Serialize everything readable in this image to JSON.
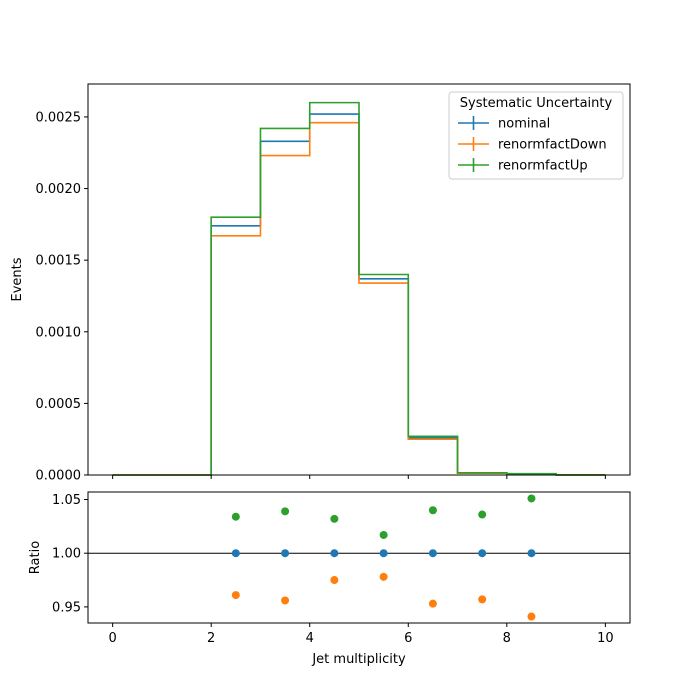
{
  "colors": {
    "nominal": "#1f77b4",
    "renormfactDown": "#ff7f0e",
    "renormfactUp": "#2ca02c",
    "reference_line": "#000000",
    "axis": "#000000",
    "background": "#ffffff"
  },
  "chart_data": [
    {
      "type": "step-histogram",
      "title": "",
      "xlabel": "",
      "ylabel": "Events",
      "xlim": [
        -0.5,
        10.5
      ],
      "ylim": [
        0,
        0.00273
      ],
      "grid": false,
      "x_ticks": [
        0,
        2,
        4,
        6,
        8,
        10
      ],
      "x_tick_labels_visible": false,
      "y_ticks": [
        0,
        0.0005,
        0.001,
        0.0015,
        0.002,
        0.0025
      ],
      "y_tick_labels": [
        "0.0000",
        "0.0005",
        "0.0010",
        "0.0015",
        "0.0020",
        "0.0025"
      ],
      "bin_edges": [
        0,
        1,
        2,
        3,
        4,
        5,
        6,
        7,
        8,
        9,
        10
      ],
      "legend": {
        "title": "Systematic Uncertainty",
        "placement": "top-right",
        "entries": [
          "nominal",
          "renormfactDown",
          "renormfactUp"
        ]
      },
      "series": [
        {
          "name": "nominal",
          "values": [
            0,
            0,
            0.00174,
            0.00233,
            0.00252,
            0.00137,
            0.00026,
            1.4e-05,
            8.5e-06,
            5e-07
          ]
        },
        {
          "name": "renormfactDown",
          "values": [
            0,
            0,
            0.00167,
            0.00223,
            0.00246,
            0.00134,
            0.00025,
            1.3e-05,
            8.1e-06,
            5e-07
          ]
        },
        {
          "name": "renormfactUp",
          "values": [
            0,
            0,
            0.0018,
            0.00242,
            0.0026,
            0.0014,
            0.00027,
            1.5e-05,
            8.9e-06,
            5e-07
          ]
        }
      ]
    },
    {
      "type": "scatter",
      "title": "",
      "xlabel": "Jet multiplicity",
      "ylabel": "Ratio",
      "xlim": [
        -0.5,
        10.5
      ],
      "ylim": [
        0.935,
        1.057
      ],
      "grid": false,
      "reference_line": 1.0,
      "x_ticks": [
        0,
        2,
        4,
        6,
        8,
        10
      ],
      "x_tick_labels": [
        "0",
        "2",
        "4",
        "6",
        "8",
        "10"
      ],
      "y_ticks": [
        0.95,
        1.0,
        1.05
      ],
      "y_tick_labels": [
        "0.95",
        "1.00",
        "1.05"
      ],
      "x": [
        2.5,
        3.5,
        4.5,
        5.5,
        6.5,
        7.5,
        8.5
      ],
      "series": [
        {
          "name": "nominal",
          "values": [
            1.0,
            1.0,
            1.0,
            1.0,
            1.0,
            1.0,
            1.0
          ]
        },
        {
          "name": "renormfactDown",
          "values": [
            0.961,
            0.956,
            0.975,
            0.978,
            0.953,
            0.957,
            0.941
          ]
        },
        {
          "name": "renormfactUp",
          "values": [
            1.034,
            1.039,
            1.032,
            1.017,
            1.04,
            1.036,
            1.051
          ]
        }
      ]
    }
  ]
}
